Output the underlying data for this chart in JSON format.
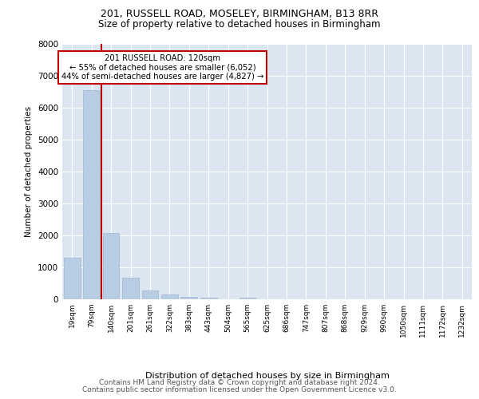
{
  "title_line1": "201, RUSSELL ROAD, MOSELEY, BIRMINGHAM, B13 8RR",
  "title_line2": "Size of property relative to detached houses in Birmingham",
  "xlabel": "Distribution of detached houses by size in Birmingham",
  "ylabel": "Number of detached properties",
  "footer_line1": "Contains HM Land Registry data © Crown copyright and database right 2024.",
  "footer_line2": "Contains public sector information licensed under the Open Government Licence v3.0.",
  "bin_labels": [
    "19sqm",
    "79sqm",
    "140sqm",
    "201sqm",
    "261sqm",
    "322sqm",
    "383sqm",
    "443sqm",
    "504sqm",
    "565sqm",
    "625sqm",
    "686sqm",
    "747sqm",
    "807sqm",
    "868sqm",
    "929sqm",
    "990sqm",
    "1050sqm",
    "1111sqm",
    "1172sqm",
    "1232sqm"
  ],
  "bar_values": [
    1300,
    6550,
    2080,
    680,
    270,
    140,
    80,
    50,
    0,
    60,
    0,
    0,
    0,
    0,
    0,
    0,
    0,
    0,
    0,
    0,
    0
  ],
  "bar_color": "#b8cce4",
  "bar_edgecolor": "#9db8d2",
  "vline_color": "#c00000",
  "vline_x": 1.5,
  "annotation_text": "201 RUSSELL ROAD: 120sqm\n← 55% of detached houses are smaller (6,052)\n44% of semi-detached houses are larger (4,827) →",
  "annotation_box_edgecolor": "#c00000",
  "ylim": [
    0,
    8000
  ],
  "yticks": [
    0,
    1000,
    2000,
    3000,
    4000,
    5000,
    6000,
    7000,
    8000
  ],
  "grid_color": "#ffffff",
  "bg_color": "#dce6f1",
  "title1_fontsize": 9,
  "title2_fontsize": 8.5,
  "footer_fontsize": 6.5
}
